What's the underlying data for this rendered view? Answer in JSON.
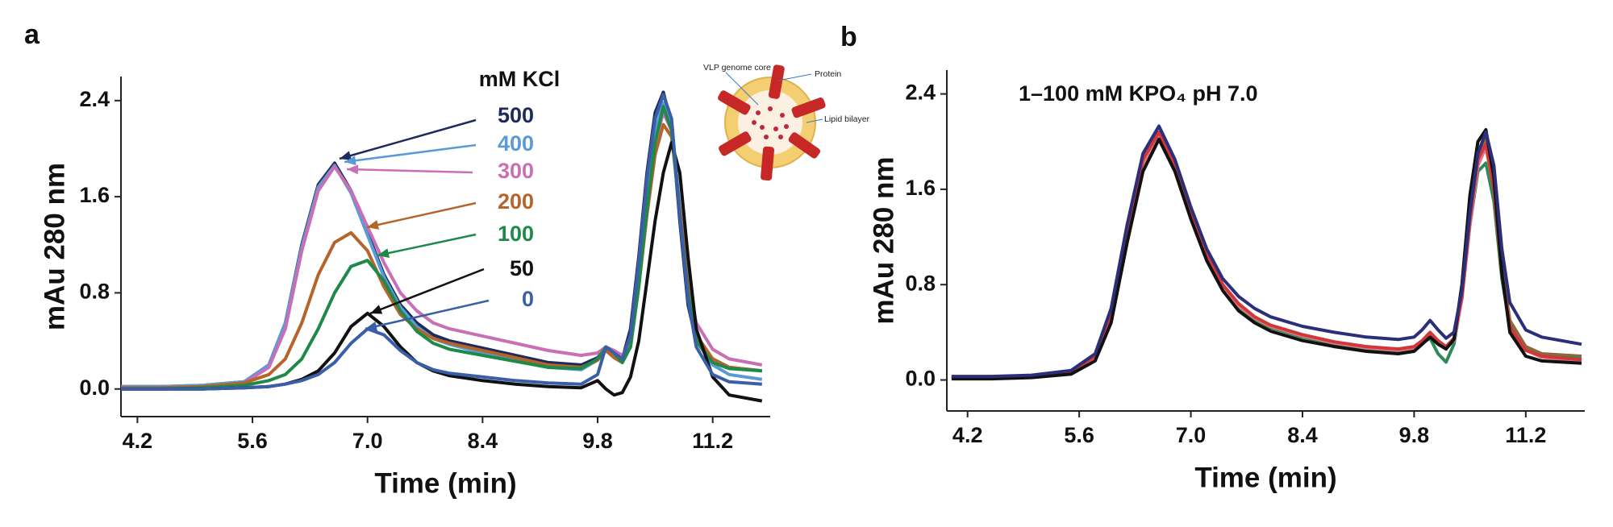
{
  "chart_data": [
    {
      "type": "line",
      "panel_label": "a",
      "xlabel": "Time (min)",
      "ylabel": "mAu 280 nm",
      "legend_title": "mM KCl",
      "inset": {
        "labels": [
          "VLP genome core",
          "Protein",
          "Lipid bilayer"
        ]
      },
      "xlim": [
        4.0,
        11.9
      ],
      "ylim": [
        -0.23,
        2.6
      ],
      "xticks": [
        4.2,
        5.6,
        {
          "value": 7,
          "label": "7.0"
        },
        8.4,
        9.8,
        11.2
      ],
      "yticks": [
        {
          "value": 0,
          "label": "0.0"
        },
        0.8,
        1.6,
        2.4
      ],
      "x": [
        4.0,
        4.5,
        5.0,
        5.5,
        5.8,
        6.0,
        6.2,
        6.4,
        6.6,
        6.8,
        7.0,
        7.2,
        7.4,
        7.6,
        7.8,
        8.0,
        8.4,
        8.8,
        9.2,
        9.6,
        9.8,
        9.9,
        10.0,
        10.1,
        10.2,
        10.3,
        10.4,
        10.5,
        10.6,
        10.7,
        10.8,
        10.9,
        11.0,
        11.2,
        11.4,
        11.8
      ],
      "series": [
        {
          "name": "500",
          "color": "#1f2a5c",
          "values": [
            0.02,
            0.02,
            0.03,
            0.06,
            0.2,
            0.55,
            1.2,
            1.7,
            1.88,
            1.65,
            1.3,
            0.95,
            0.7,
            0.55,
            0.45,
            0.4,
            0.34,
            0.28,
            0.22,
            0.2,
            0.26,
            0.34,
            0.3,
            0.25,
            0.5,
            1.1,
            1.8,
            2.3,
            2.47,
            2.2,
            1.4,
            0.7,
            0.4,
            0.25,
            0.18,
            0.15
          ]
        },
        {
          "name": "400",
          "color": "#5b9bd5",
          "values": [
            0.02,
            0.02,
            0.03,
            0.06,
            0.2,
            0.55,
            1.18,
            1.68,
            1.86,
            1.63,
            1.28,
            0.93,
            0.68,
            0.52,
            0.42,
            0.37,
            0.3,
            0.24,
            0.18,
            0.16,
            0.24,
            0.33,
            0.28,
            0.22,
            0.4,
            0.95,
            1.6,
            2.15,
            2.38,
            2.2,
            1.5,
            0.8,
            0.4,
            0.2,
            0.12,
            0.08
          ]
        },
        {
          "name": "300",
          "color": "#c86fb5",
          "values": [
            0.01,
            0.01,
            0.02,
            0.05,
            0.18,
            0.5,
            1.15,
            1.65,
            1.85,
            1.65,
            1.35,
            1.05,
            0.8,
            0.65,
            0.55,
            0.5,
            0.44,
            0.38,
            0.32,
            0.28,
            0.3,
            0.35,
            0.32,
            0.28,
            0.4,
            0.9,
            1.5,
            2.05,
            2.3,
            2.15,
            1.5,
            0.9,
            0.55,
            0.33,
            0.25,
            0.2
          ]
        },
        {
          "name": "200",
          "color": "#b5642a",
          "values": [
            0.01,
            0.01,
            0.02,
            0.05,
            0.12,
            0.25,
            0.55,
            0.95,
            1.22,
            1.3,
            1.15,
            0.85,
            0.62,
            0.5,
            0.42,
            0.38,
            0.32,
            0.26,
            0.2,
            0.18,
            0.24,
            0.32,
            0.26,
            0.22,
            0.35,
            0.85,
            1.45,
            1.95,
            2.2,
            2.1,
            1.5,
            0.85,
            0.45,
            0.25,
            0.18,
            0.15
          ]
        },
        {
          "name": "100",
          "color": "#1e8a4a",
          "values": [
            0.0,
            0.0,
            0.01,
            0.03,
            0.07,
            0.12,
            0.25,
            0.5,
            0.8,
            1.02,
            1.07,
            0.9,
            0.65,
            0.48,
            0.38,
            0.33,
            0.28,
            0.23,
            0.18,
            0.17,
            0.25,
            0.35,
            0.3,
            0.22,
            0.35,
            0.85,
            1.5,
            2.05,
            2.35,
            2.15,
            1.45,
            0.8,
            0.4,
            0.22,
            0.17,
            0.15
          ]
        },
        {
          "name": "50",
          "color": "#111111",
          "values": [
            0.0,
            0.0,
            0.0,
            0.01,
            0.02,
            0.04,
            0.08,
            0.15,
            0.3,
            0.52,
            0.63,
            0.52,
            0.35,
            0.22,
            0.15,
            0.11,
            0.07,
            0.04,
            0.02,
            0.01,
            0.07,
            0.0,
            -0.05,
            -0.03,
            0.1,
            0.4,
            0.9,
            1.4,
            1.8,
            2.05,
            1.8,
            1.1,
            0.5,
            0.1,
            -0.05,
            -0.1
          ]
        },
        {
          "name": "0",
          "color": "#3a5fa8",
          "values": [
            0.0,
            0.0,
            0.0,
            0.01,
            0.02,
            0.04,
            0.07,
            0.12,
            0.22,
            0.38,
            0.5,
            0.45,
            0.32,
            0.22,
            0.16,
            0.13,
            0.1,
            0.07,
            0.05,
            0.04,
            0.12,
            0.35,
            0.3,
            0.25,
            0.45,
            1.05,
            1.75,
            2.25,
            2.45,
            2.25,
            1.45,
            0.75,
            0.35,
            0.12,
            0.06,
            0.04
          ]
        }
      ]
    },
    {
      "type": "line",
      "panel_label": "b",
      "xlabel": "Time (min)",
      "ylabel": "mAu 280 nm",
      "annotation": "1–100 mM KPO₄ pH 7.0",
      "xlim": [
        3.94,
        11.94
      ],
      "ylim": [
        -0.26,
        2.6
      ],
      "xticks": [
        4.2,
        5.6,
        {
          "value": 7,
          "label": "7.0"
        },
        8.4,
        9.8,
        11.2
      ],
      "yticks": [
        {
          "value": 0,
          "label": "0.0"
        },
        0.8,
        1.6,
        2.4
      ],
      "x": [
        4.0,
        4.5,
        5.0,
        5.5,
        5.8,
        6.0,
        6.2,
        6.4,
        6.6,
        6.8,
        7.0,
        7.2,
        7.4,
        7.6,
        7.8,
        8.0,
        8.4,
        8.8,
        9.2,
        9.6,
        9.8,
        9.9,
        10.0,
        10.1,
        10.2,
        10.3,
        10.4,
        10.5,
        10.6,
        10.7,
        10.8,
        10.9,
        11.0,
        11.2,
        11.4,
        11.9
      ],
      "series": [
        {
          "color": "#8a6a3a",
          "values": [
            0.02,
            0.02,
            0.03,
            0.06,
            0.18,
            0.5,
            1.2,
            1.8,
            2.06,
            1.78,
            1.38,
            1.04,
            0.79,
            0.63,
            0.52,
            0.45,
            0.37,
            0.31,
            0.27,
            0.25,
            0.27,
            0.32,
            0.38,
            0.32,
            0.27,
            0.34,
            0.72,
            1.4,
            1.9,
            2.04,
            1.65,
            0.95,
            0.5,
            0.28,
            0.22,
            0.2
          ]
        },
        {
          "color": "#2e8b57",
          "values": [
            0.02,
            0.02,
            0.03,
            0.06,
            0.18,
            0.5,
            1.18,
            1.78,
            2.03,
            1.76,
            1.36,
            1.02,
            0.77,
            0.61,
            0.51,
            0.44,
            0.36,
            0.3,
            0.26,
            0.24,
            0.26,
            0.31,
            0.35,
            0.22,
            0.15,
            0.3,
            0.7,
            1.3,
            1.75,
            1.82,
            1.5,
            0.85,
            0.45,
            0.25,
            0.2,
            0.18
          ]
        },
        {
          "color": "#e07a8a",
          "values": [
            0.02,
            0.02,
            0.03,
            0.06,
            0.19,
            0.52,
            1.2,
            1.8,
            2.05,
            1.78,
            1.38,
            1.03,
            0.78,
            0.62,
            0.52,
            0.45,
            0.37,
            0.31,
            0.27,
            0.25,
            0.27,
            0.32,
            0.38,
            0.32,
            0.27,
            0.33,
            0.68,
            1.3,
            1.8,
            1.95,
            1.6,
            0.9,
            0.45,
            0.25,
            0.19,
            0.16
          ]
        },
        {
          "color": "#d0363a",
          "values": [
            0.02,
            0.02,
            0.03,
            0.07,
            0.2,
            0.55,
            1.25,
            1.85,
            2.08,
            1.8,
            1.4,
            1.05,
            0.8,
            0.64,
            0.53,
            0.46,
            0.38,
            0.32,
            0.28,
            0.26,
            0.28,
            0.33,
            0.4,
            0.33,
            0.28,
            0.35,
            0.7,
            1.35,
            1.85,
            1.98,
            1.6,
            0.9,
            0.45,
            0.25,
            0.2,
            0.17
          ]
        },
        {
          "color": "#111111",
          "values": [
            0.01,
            0.01,
            0.02,
            0.05,
            0.16,
            0.48,
            1.15,
            1.75,
            2.02,
            1.75,
            1.35,
            1.0,
            0.75,
            0.58,
            0.48,
            0.41,
            0.33,
            0.28,
            0.24,
            0.22,
            0.24,
            0.3,
            0.36,
            0.3,
            0.26,
            0.34,
            0.8,
            1.55,
            2.0,
            2.1,
            1.7,
            0.9,
            0.4,
            0.2,
            0.16,
            0.14
          ]
        },
        {
          "color": "#2b2f7a",
          "values": [
            0.03,
            0.03,
            0.04,
            0.08,
            0.22,
            0.6,
            1.3,
            1.9,
            2.13,
            1.85,
            1.45,
            1.1,
            0.85,
            0.7,
            0.6,
            0.53,
            0.45,
            0.4,
            0.36,
            0.34,
            0.36,
            0.42,
            0.5,
            0.42,
            0.35,
            0.4,
            0.75,
            1.4,
            1.9,
            2.08,
            1.8,
            1.1,
            0.65,
            0.42,
            0.36,
            0.3
          ]
        }
      ]
    }
  ]
}
